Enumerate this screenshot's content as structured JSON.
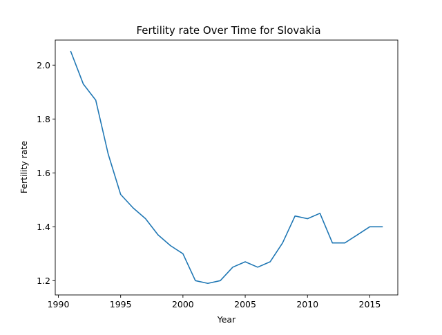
{
  "chart_data": {
    "type": "line",
    "title": "Fertility rate Over Time for Slovakia",
    "xlabel": "Year",
    "ylabel": "Fertility rate",
    "xlim": [
      1989.75,
      2017.25
    ],
    "ylim": [
      1.147,
      2.093
    ],
    "xticks": [
      1990,
      1995,
      2000,
      2005,
      2010,
      2015
    ],
    "yticks": [
      1.2,
      1.4,
      1.6,
      1.8,
      2.0
    ],
    "ytick_labels": [
      "1.2",
      "1.4",
      "1.6",
      "1.8",
      "2.0"
    ],
    "grid": false,
    "line_color": "#1f77b4",
    "series": [
      {
        "x": [
          1991,
          1992,
          1993,
          1994,
          1995,
          1996,
          1997,
          1998,
          1999,
          2000,
          2001,
          2002,
          2003,
          2004,
          2005,
          2006,
          2007,
          2008,
          2009,
          2010,
          2011,
          2012,
          2013,
          2014,
          2015,
          2016
        ],
        "values": [
          2.05,
          1.93,
          1.87,
          1.67,
          1.52,
          1.47,
          1.43,
          1.37,
          1.33,
          1.3,
          1.2,
          1.19,
          1.2,
          1.25,
          1.27,
          1.25,
          1.27,
          1.34,
          1.44,
          1.43,
          1.45,
          1.34,
          1.34,
          1.37,
          1.4,
          1.4
        ]
      }
    ]
  }
}
